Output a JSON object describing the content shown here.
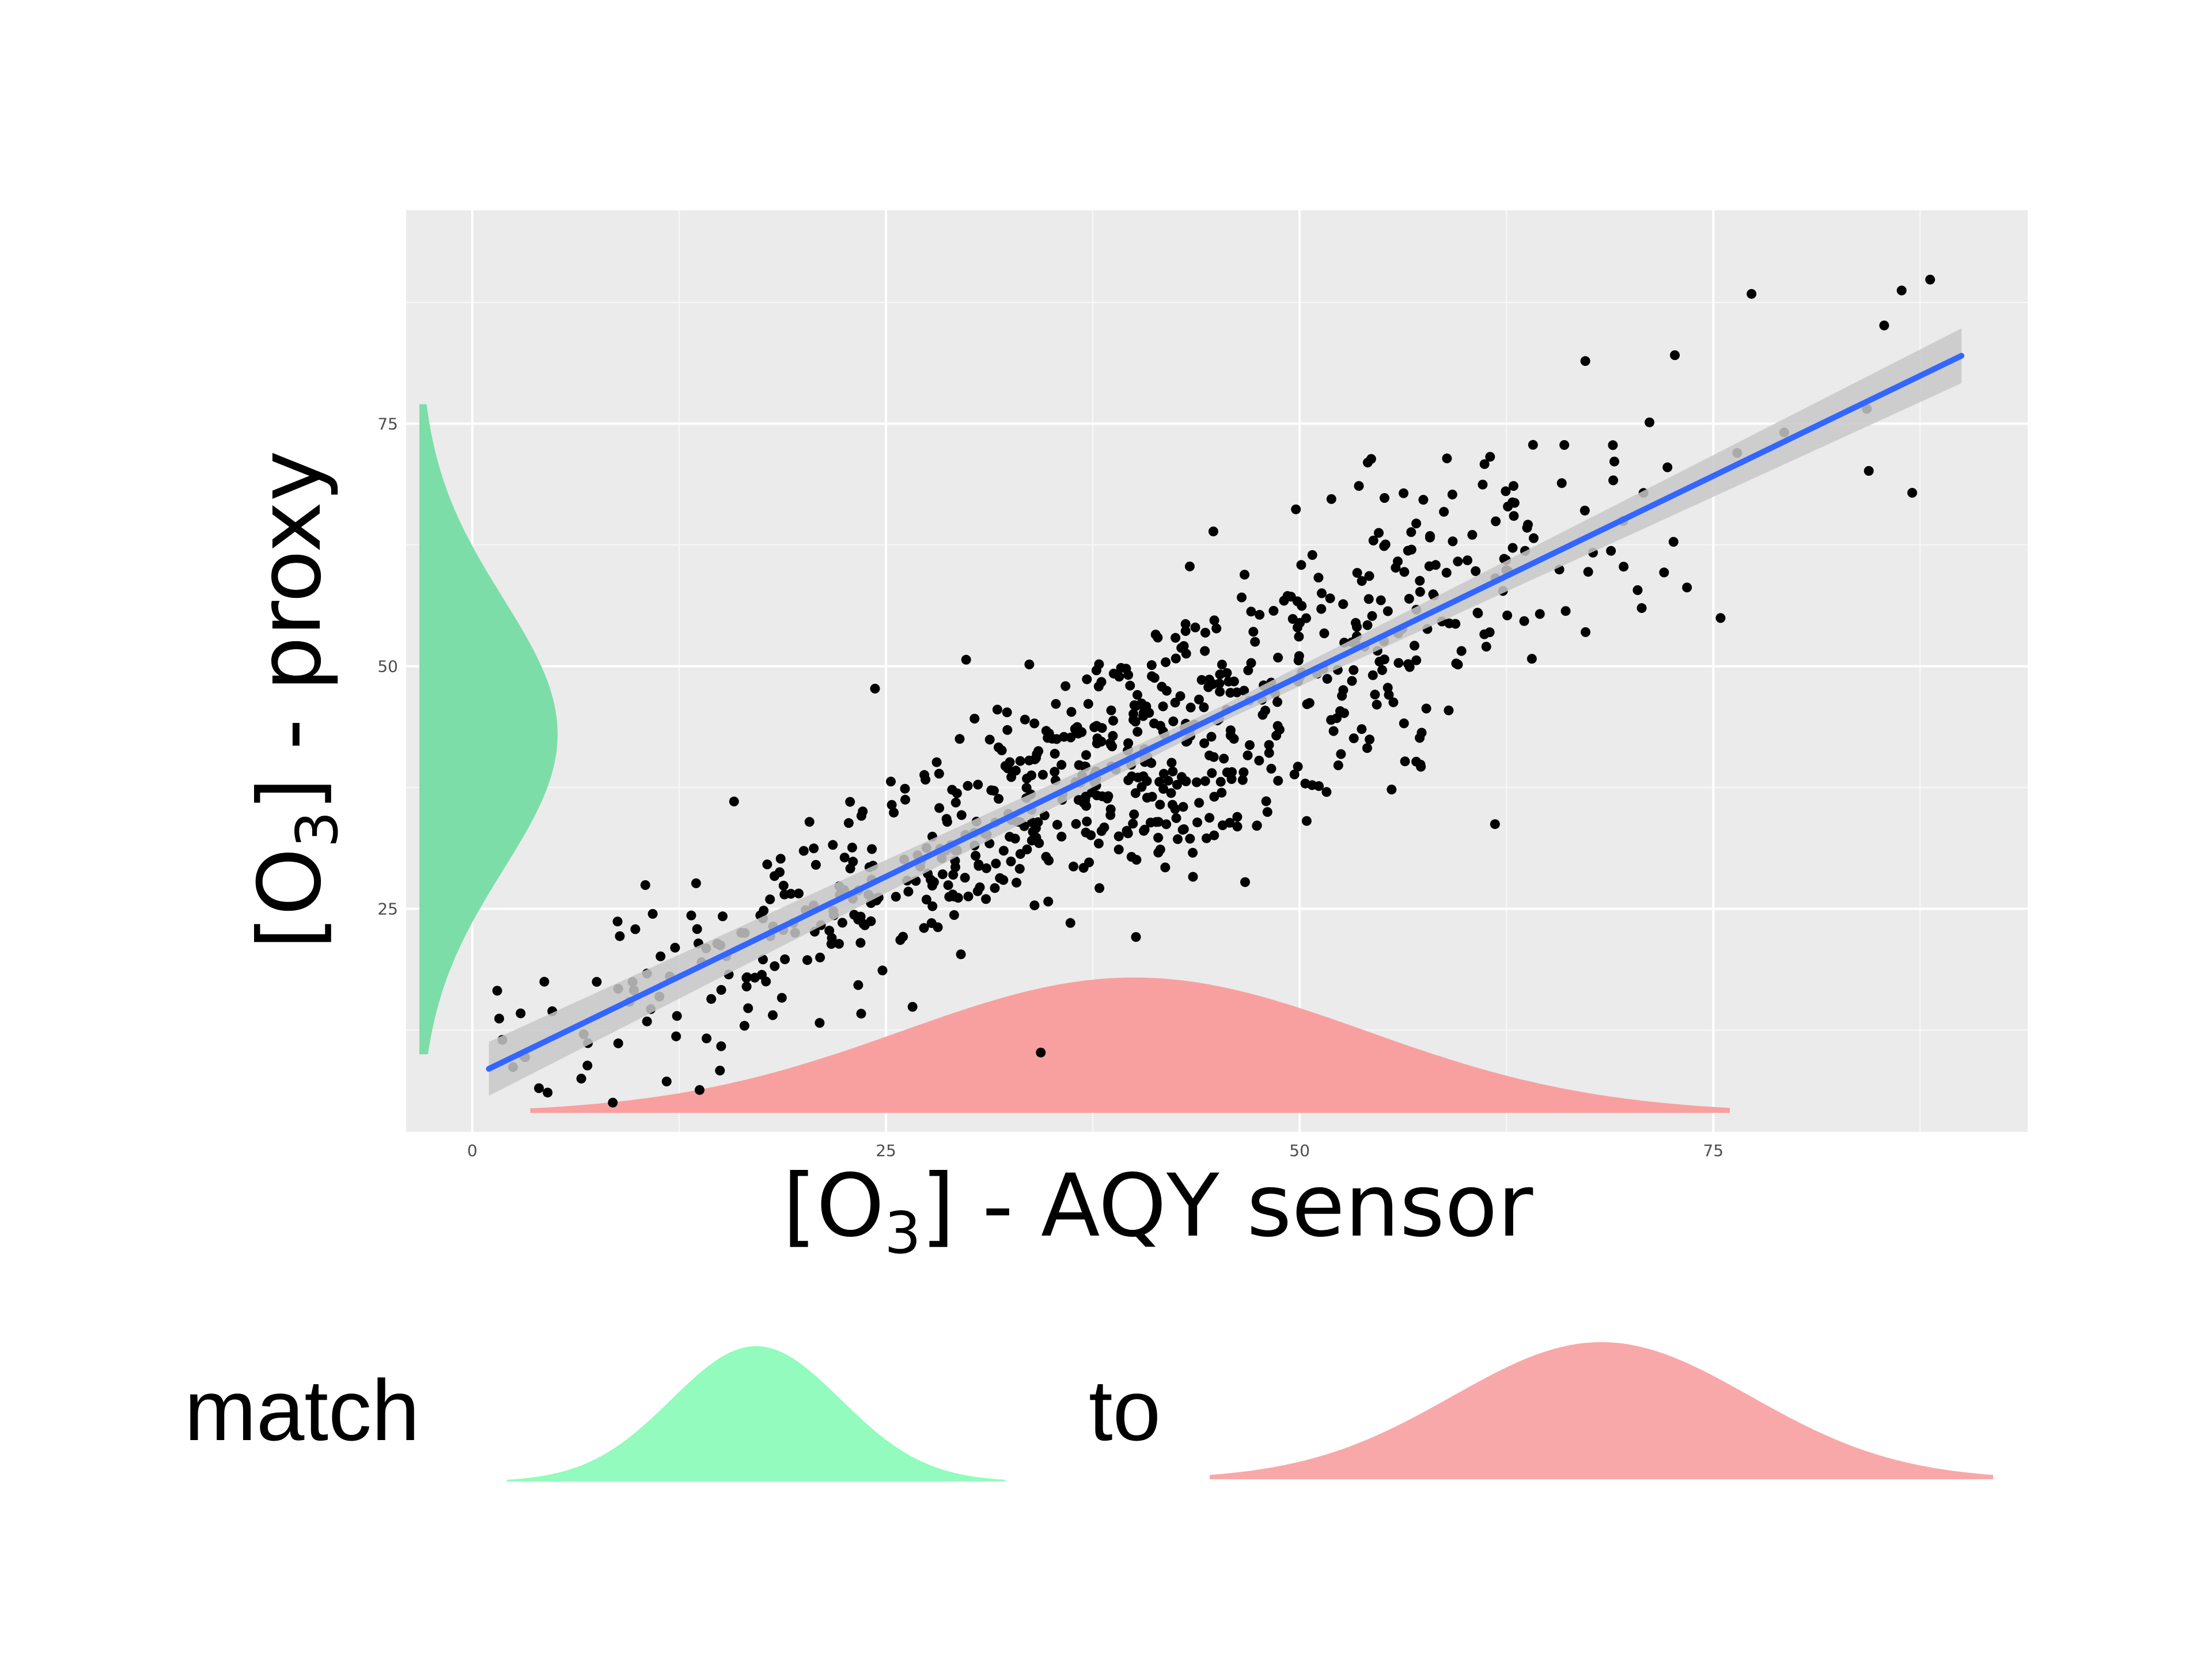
{
  "chart_data": {
    "type": "scatter",
    "title": "",
    "xlabel": {
      "prefix": "[O",
      "subscript": "3",
      "suffix": "] - AQY sensor"
    },
    "ylabel": {
      "prefix": "[O",
      "subscript": "3",
      "suffix": "] - proxy"
    },
    "xlim": [
      -4,
      94
    ],
    "ylim": [
      2,
      97
    ],
    "x_ticks": [
      0,
      25,
      50,
      75
    ],
    "x_tick_labels": [
      "0",
      "25",
      "50",
      "75"
    ],
    "y_ticks": [
      25,
      50,
      75
    ],
    "y_tick_labels": [
      "25",
      "50",
      "75"
    ],
    "grid": true,
    "panel_background": "#ebebeb",
    "regression": {
      "x": [
        1,
        90
      ],
      "y": [
        8.5,
        82
      ],
      "color": "#3366ff",
      "confidence_band_color": "#c8c8c8"
    },
    "point_color": "#000000",
    "point_count": 760,
    "x_marginal_density": {
      "color": "#f8a0a0",
      "mean": 40,
      "sd": 14,
      "range": [
        3.5,
        76
      ]
    },
    "y_marginal_density": {
      "color": "#7ddda8",
      "mean": 43,
      "sd": 14,
      "range": [
        10,
        77
      ]
    },
    "legend": {
      "position": "bottom",
      "word1": "match",
      "word2": "to",
      "curve1_color": "#92fbbd",
      "curve2_color": "#f8a8a8"
    }
  }
}
